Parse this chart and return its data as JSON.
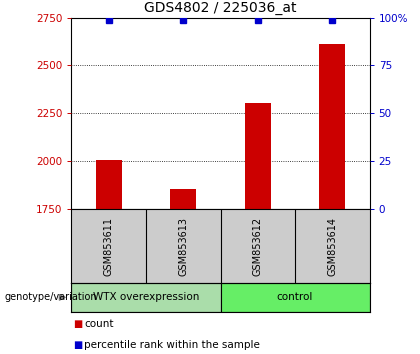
{
  "title": "GDS4802 / 225036_at",
  "samples": [
    "GSM853611",
    "GSM853613",
    "GSM853612",
    "GSM853614"
  ],
  "bar_values": [
    2005,
    1855,
    2305,
    2610
  ],
  "percentile_values": [
    99,
    99,
    99,
    99
  ],
  "ylim_left": [
    1750,
    2750
  ],
  "ylim_right": [
    0,
    100
  ],
  "yticks_left": [
    1750,
    2000,
    2250,
    2500,
    2750
  ],
  "yticks_right": [
    0,
    25,
    50,
    75,
    100
  ],
  "ytick_labels_right": [
    "0",
    "25",
    "50",
    "75",
    "100%"
  ],
  "bar_color": "#cc0000",
  "percentile_color": "#0000cc",
  "bar_bottom": 1750,
  "groups": [
    {
      "label": "WTX overexpression",
      "indices": [
        0,
        1
      ],
      "color": "#77dd77"
    },
    {
      "label": "control",
      "indices": [
        2,
        3
      ],
      "color": "#77dd77"
    }
  ],
  "group_label_prefix": "genotype/variation",
  "legend_items": [
    {
      "label": "count",
      "color": "#cc0000"
    },
    {
      "label": "percentile rank within the sample",
      "color": "#0000cc"
    }
  ],
  "title_color": "#000000",
  "left_tick_color": "#cc0000",
  "right_tick_color": "#0000cc",
  "background_color": "#ffffff",
  "plot_bg_color": "#ffffff",
  "grid_color": "#000000",
  "bar_width": 0.35,
  "percentile_marker_size": 5,
  "spine_color": "#000000",
  "label_box_color": "#cccccc",
  "group1_color": "#aaddaa",
  "group2_color": "#66ee66"
}
